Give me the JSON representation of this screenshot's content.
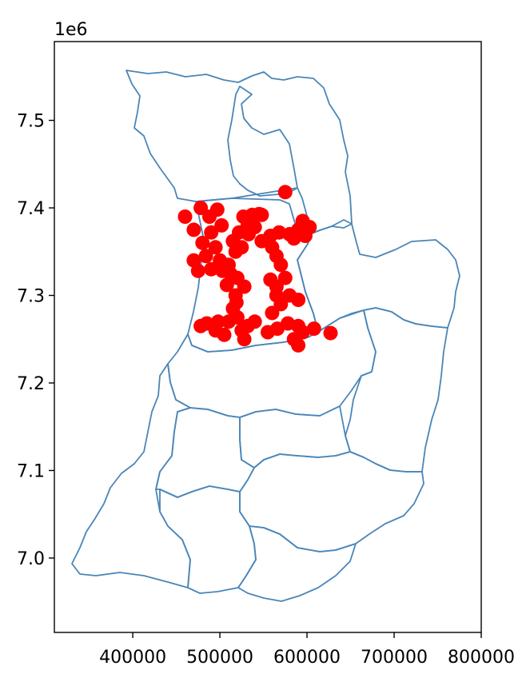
{
  "chart_data": {
    "type": "scatter",
    "title": "",
    "xlabel": "",
    "ylabel": "",
    "y_offset_text": "1e6",
    "xlim": [
      310000,
      800000
    ],
    "ylim": [
      6915000,
      7590000
    ],
    "x_ticks": [
      400000,
      500000,
      600000,
      700000,
      800000
    ],
    "x_tick_labels": [
      "400000",
      "500000",
      "600000",
      "700000",
      "800000"
    ],
    "y_ticks": [
      7.0,
      7.1,
      7.2,
      7.3,
      7.4,
      7.5
    ],
    "y_tick_labels": [
      "7.0",
      "7.1",
      "7.2",
      "7.3",
      "7.4",
      "7.5"
    ],
    "point_color": "#ff0000",
    "boundary_color": "#4a86b8",
    "points": [
      [
        460000,
        7390000
      ],
      [
        478000,
        7400000
      ],
      [
        497000,
        7398000
      ],
      [
        488000,
        7390000
      ],
      [
        470000,
        7375000
      ],
      [
        490000,
        7372000
      ],
      [
        502000,
        7380000
      ],
      [
        480000,
        7360000
      ],
      [
        495000,
        7355000
      ],
      [
        484000,
        7345000
      ],
      [
        500000,
        7340000
      ],
      [
        470000,
        7340000
      ],
      [
        475000,
        7328000
      ],
      [
        490000,
        7330000
      ],
      [
        510000,
        7335000
      ],
      [
        518000,
        7350000
      ],
      [
        515000,
        7362000
      ],
      [
        522000,
        7372000
      ],
      [
        527000,
        7390000
      ],
      [
        537000,
        7392000
      ],
      [
        545000,
        7393000
      ],
      [
        540000,
        7378000
      ],
      [
        533000,
        7370000
      ],
      [
        548000,
        7362000
      ],
      [
        525000,
        7355000
      ],
      [
        512000,
        7325000
      ],
      [
        520000,
        7320000
      ],
      [
        508000,
        7312000
      ],
      [
        528000,
        7310000
      ],
      [
        518000,
        7300000
      ],
      [
        515000,
        7285000
      ],
      [
        520000,
        7275000
      ],
      [
        510000,
        7270000
      ],
      [
        498000,
        7270000
      ],
      [
        485000,
        7268000
      ],
      [
        478000,
        7265000
      ],
      [
        495000,
        7260000
      ],
      [
        505000,
        7255000
      ],
      [
        525000,
        7260000
      ],
      [
        532000,
        7265000
      ],
      [
        540000,
        7270000
      ],
      [
        528000,
        7250000
      ],
      [
        555000,
        7258000
      ],
      [
        566000,
        7262000
      ],
      [
        578000,
        7268000
      ],
      [
        590000,
        7265000
      ],
      [
        595000,
        7258000
      ],
      [
        585000,
        7250000
      ],
      [
        590000,
        7243000
      ],
      [
        560000,
        7280000
      ],
      [
        570000,
        7290000
      ],
      [
        580000,
        7300000
      ],
      [
        590000,
        7295000
      ],
      [
        565000,
        7310000
      ],
      [
        575000,
        7320000
      ],
      [
        558000,
        7318000
      ],
      [
        570000,
        7335000
      ],
      [
        565000,
        7345000
      ],
      [
        560000,
        7355000
      ],
      [
        558000,
        7368000
      ],
      [
        568000,
        7372000
      ],
      [
        580000,
        7370000
      ],
      [
        590000,
        7375000
      ],
      [
        598000,
        7368000
      ],
      [
        603000,
        7378000
      ],
      [
        595000,
        7385000
      ],
      [
        585000,
        7365000
      ],
      [
        575000,
        7418000
      ],
      [
        608000,
        7262000
      ],
      [
        627000,
        7257000
      ],
      [
        532000,
        7380000
      ],
      [
        548000,
        7392000
      ],
      [
        503000,
        7328000
      ],
      [
        519000,
        7292000
      ],
      [
        565000,
        7300000
      ]
    ]
  }
}
